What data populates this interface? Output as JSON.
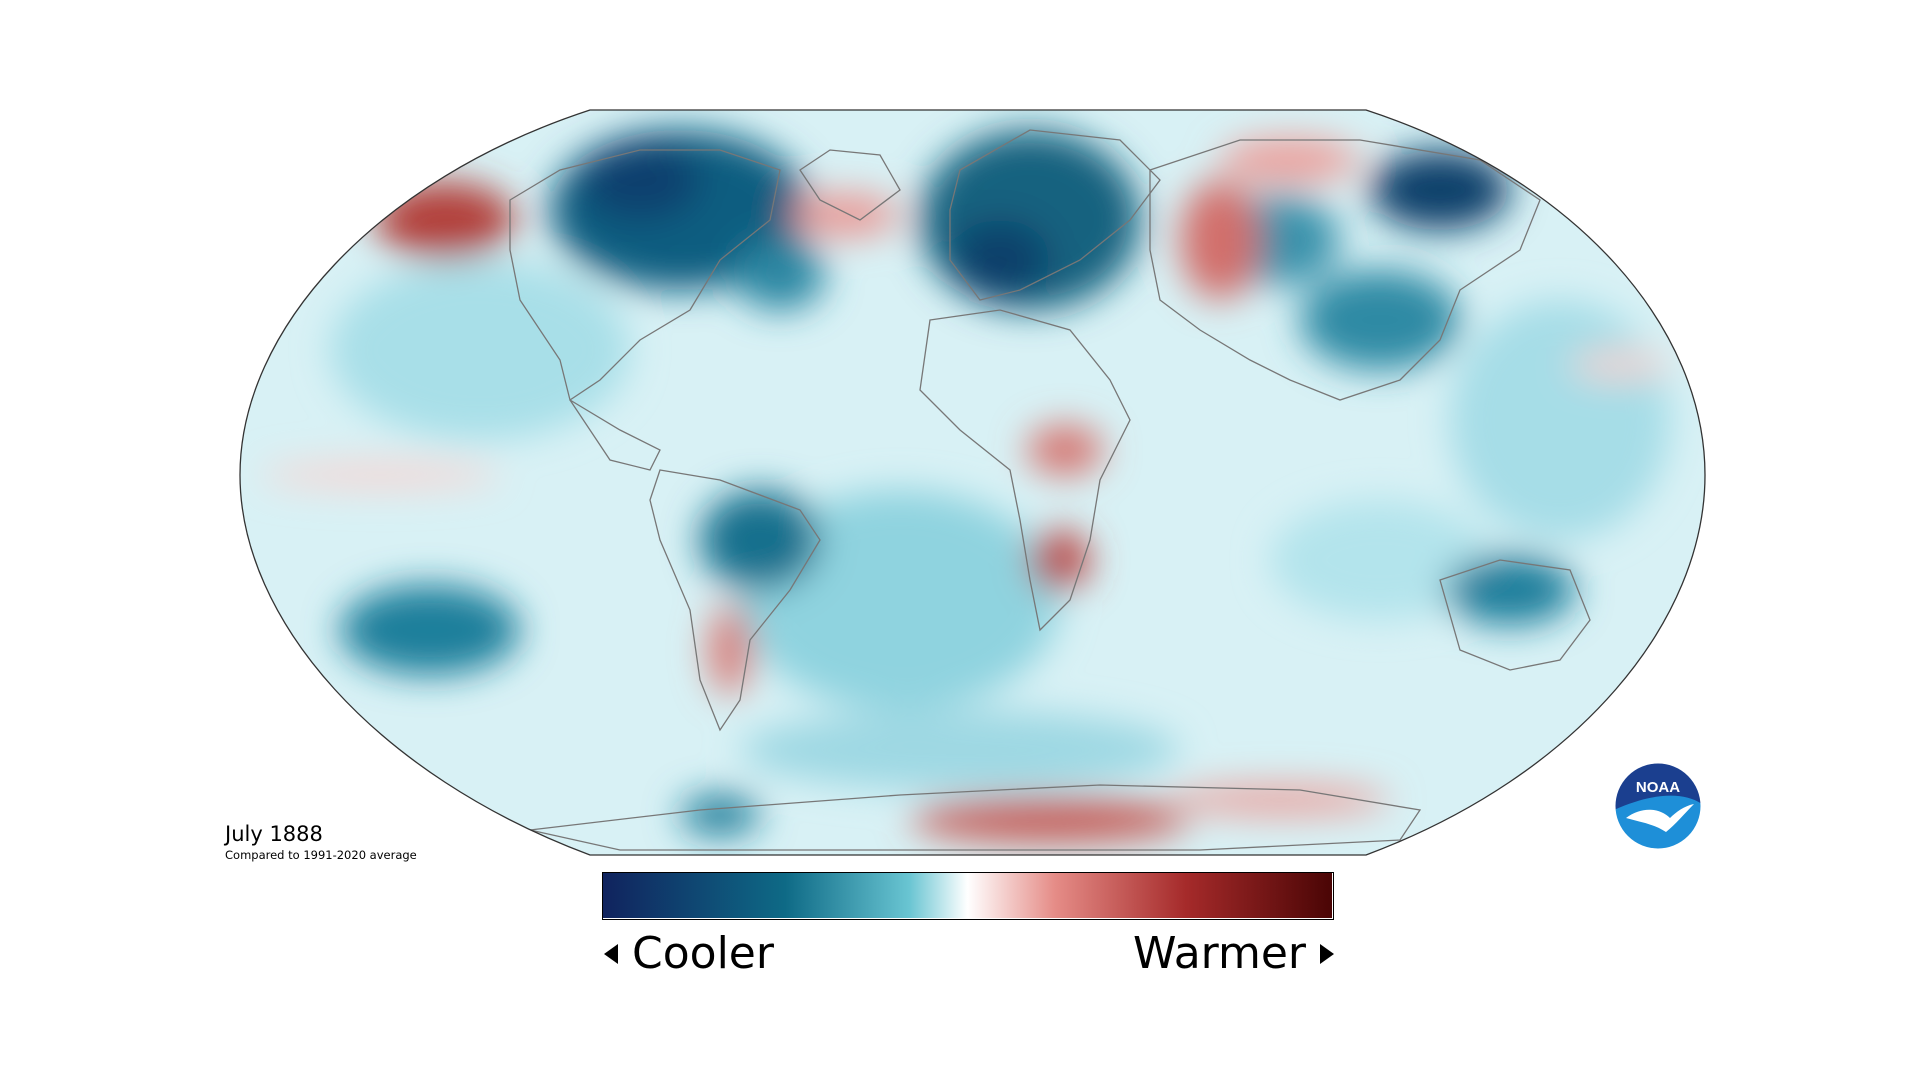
{
  "map": {
    "title": "July 1888",
    "subtitle": "Compared to 1991-2020 average",
    "projection": "robinson",
    "anomaly_scale": {
      "colors": [
        "#10235e",
        "#0e6a86",
        "#69c5d2",
        "#ffffff",
        "#e58c87",
        "#a52a2a",
        "#4a0505"
      ],
      "left_label": "Cooler",
      "right_label": "Warmer"
    },
    "regions": [
      {
        "name": "North Pacific (Alaska Gulf)",
        "anomaly": "warmer"
      },
      {
        "name": "Canada / Hudson Bay",
        "anomaly": "much cooler"
      },
      {
        "name": "Greenland east coast",
        "anomaly": "warmer"
      },
      {
        "name": "Scandinavia / Western Europe",
        "anomaly": "much cooler"
      },
      {
        "name": "Western Siberia",
        "anomaly": "warmer"
      },
      {
        "name": "Eastern Siberia",
        "anomaly": "cooler"
      },
      {
        "name": "Central Africa",
        "anomaly": "warmer"
      },
      {
        "name": "Southern Africa",
        "anomaly": "warmer"
      },
      {
        "name": "Brazil",
        "anomaly": "cooler"
      },
      {
        "name": "Argentina",
        "anomaly": "warmer"
      },
      {
        "name": "Australia",
        "anomaly": "cooler"
      },
      {
        "name": "South Pacific",
        "anomaly": "cooler"
      },
      {
        "name": "Antarctica coast",
        "anomaly": "warmer"
      }
    ]
  },
  "logo": {
    "text": "NOAA",
    "colors": {
      "top": "#1b3f8f",
      "bottom": "#1e8fd8",
      "bird": "#ffffff"
    }
  }
}
